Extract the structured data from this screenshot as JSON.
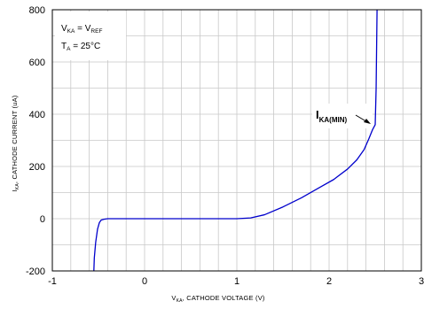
{
  "chart_data": {
    "type": "line",
    "xlabel": {
      "main": "V",
      "sub": "KA",
      "rest": ", CATHODE   VOLTAGE (V)"
    },
    "ylabel": {
      "main": "I",
      "sub": "KA",
      "rest": ", CATHODE  CURRENT (uA)"
    },
    "xlim": [
      -1,
      3
    ],
    "ylim": [
      -200,
      800
    ],
    "xticks": [
      "-1",
      "0",
      "1",
      "2",
      "3"
    ],
    "yticks": [
      "-200",
      "0",
      "200",
      "400",
      "600",
      "800"
    ],
    "minor_x_step": 0.2,
    "minor_y_step": 100,
    "grid": true,
    "legend_position": "top-left",
    "legend": {
      "line1": {
        "main": "V",
        "sub": "KA",
        "rest": " = V",
        "sub2": "REF"
      },
      "line2": {
        "main": "T",
        "sub": "A",
        "rest": " = 25°C"
      }
    },
    "annotation": {
      "main": "I",
      "sub": "KA(MIN)",
      "x": 2.5,
      "y": 360
    },
    "series": [
      {
        "color": "#0000cc",
        "x": [
          -0.55,
          -0.545,
          -0.53,
          -0.51,
          -0.49,
          -0.47,
          -0.44,
          -0.4,
          -0.3,
          0.0,
          0.5,
          1.0,
          1.15,
          1.3,
          1.5,
          1.7,
          1.9,
          2.05,
          2.2,
          2.3,
          2.38,
          2.43,
          2.47,
          2.5,
          2.51,
          2.515,
          2.52
        ],
        "y": [
          -200,
          -150,
          -90,
          -40,
          -15,
          -5,
          -2,
          0,
          0,
          0,
          0,
          0,
          3,
          15,
          45,
          80,
          120,
          150,
          190,
          225,
          265,
          305,
          340,
          360,
          500,
          650,
          800
        ]
      }
    ]
  },
  "colors": {
    "curve": "#0000cc",
    "grid": "#c8c8c8",
    "frame": "#000000"
  }
}
